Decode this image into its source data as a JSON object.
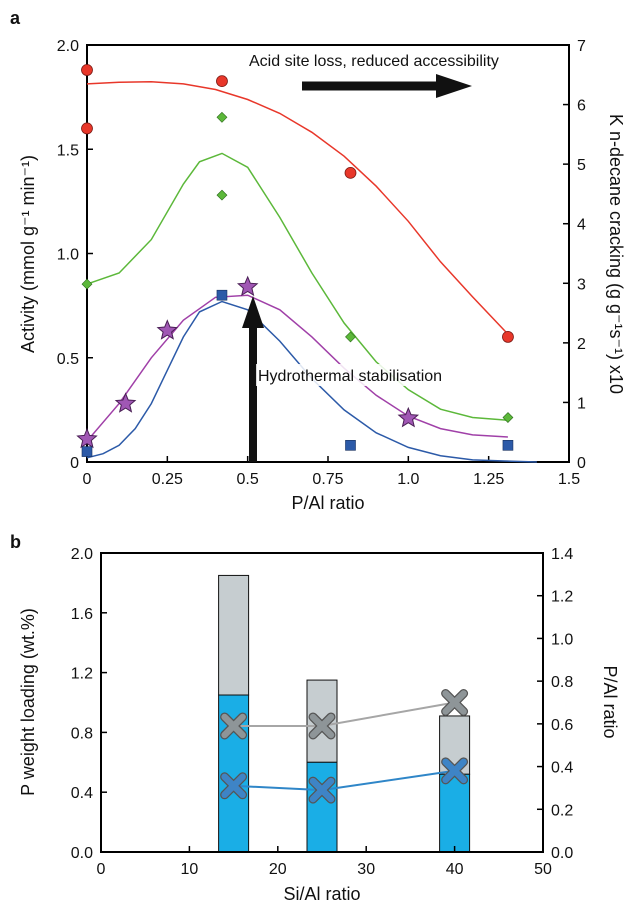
{
  "chart_data": [
    {
      "panel": "a",
      "type": "scatter",
      "xlabel": "P/Al ratio",
      "ylabel": "Activity (mmol g⁻¹ min⁻¹)",
      "y2label": "K n-decane cracking (g g⁻¹s⁻¹) x10",
      "xlim": [
        0,
        1.5
      ],
      "ylim": [
        0,
        2.0
      ],
      "y2lim": [
        0,
        7.5
      ],
      "xticks": [
        "0",
        "0.25",
        "0.5",
        "0.75",
        "1.0",
        "1.25",
        "1.5"
      ],
      "yticks": [
        "0",
        "0.5",
        "1.0",
        "1.5",
        "2.0"
      ],
      "y2ticks": [
        "0",
        "1",
        "2",
        "3",
        "4",
        "5",
        "6",
        "7"
      ],
      "grid": false,
      "annotations": {
        "top": "Acid site loss, reduced accessibility",
        "middle": "Hydrothermal stabilisation"
      },
      "colors": {
        "circle": "#e8372a",
        "diamond": "#5cb83a",
        "star": "#a057b4",
        "square": "#2c5aa8",
        "fit_red": "#e8372a",
        "fit_green": "#5cb83a",
        "fit_purple": "#a040a8",
        "fit_blue": "#2c5aa8"
      },
      "series": [
        {
          "marker": "circle",
          "axis": "right",
          "x": [
            0,
            0,
            0.42,
            0.82,
            1.31
          ],
          "y": [
            7.05,
            6.0,
            6.85,
            5.2,
            2.25
          ]
        },
        {
          "marker": "diamond",
          "axis": "right",
          "x": [
            0,
            0.42,
            0.42,
            0.82,
            1.31
          ],
          "y": [
            3.2,
            6.2,
            4.8,
            2.25,
            0.8
          ]
        },
        {
          "marker": "star",
          "axis": "left",
          "x": [
            0,
            0.12,
            0.25,
            0.5,
            1.0
          ],
          "y": [
            0.11,
            0.28,
            0.63,
            0.84,
            0.21
          ]
        },
        {
          "marker": "square",
          "axis": "left",
          "x": [
            0,
            0.42,
            0.82,
            1.31
          ],
          "y": [
            0.05,
            0.8,
            0.08,
            0.08
          ]
        }
      ],
      "fits": [
        {
          "color_key": "fit_red",
          "axis": "right",
          "x": [
            0,
            0.1,
            0.2,
            0.3,
            0.4,
            0.5,
            0.6,
            0.7,
            0.8,
            0.9,
            1.0,
            1.1,
            1.2,
            1.31
          ],
          "y": [
            6.8,
            6.83,
            6.84,
            6.8,
            6.7,
            6.52,
            6.27,
            5.93,
            5.5,
            4.96,
            4.33,
            3.6,
            2.97,
            2.3
          ]
        },
        {
          "color_key": "fit_green",
          "axis": "right",
          "x": [
            0,
            0.1,
            0.2,
            0.3,
            0.35,
            0.42,
            0.5,
            0.6,
            0.7,
            0.8,
            0.9,
            1.0,
            1.1,
            1.2,
            1.31
          ],
          "y": [
            3.2,
            3.4,
            4.0,
            5.0,
            5.4,
            5.55,
            5.3,
            4.4,
            3.4,
            2.5,
            1.8,
            1.3,
            0.95,
            0.8,
            0.75
          ]
        },
        {
          "color_key": "fit_purple",
          "axis": "left",
          "x": [
            0,
            0.1,
            0.2,
            0.3,
            0.4,
            0.5,
            0.6,
            0.7,
            0.8,
            0.9,
            1.0,
            1.1,
            1.2,
            1.31
          ],
          "y": [
            0.1,
            0.28,
            0.5,
            0.68,
            0.79,
            0.8,
            0.73,
            0.6,
            0.45,
            0.32,
            0.22,
            0.16,
            0.13,
            0.12
          ]
        },
        {
          "color_key": "fit_blue",
          "axis": "left",
          "x": [
            0,
            0.05,
            0.1,
            0.15,
            0.2,
            0.25,
            0.3,
            0.35,
            0.42,
            0.5,
            0.6,
            0.7,
            0.8,
            0.9,
            1.0,
            1.1,
            1.2,
            1.3,
            1.4
          ],
          "y": [
            0.02,
            0.04,
            0.08,
            0.16,
            0.28,
            0.44,
            0.6,
            0.72,
            0.77,
            0.73,
            0.58,
            0.4,
            0.25,
            0.14,
            0.07,
            0.03,
            0.01,
            0.005,
            0
          ]
        }
      ]
    },
    {
      "panel": "b",
      "type": "bar",
      "xlabel": "Si/Al ratio",
      "ylabel": "P weight loading (wt.%)",
      "y2label": "P/Al ratio",
      "xlim": [
        0,
        50
      ],
      "ylim": [
        0,
        2.0
      ],
      "y2lim": [
        0,
        1.4
      ],
      "xticks": [
        "0",
        "10",
        "20",
        "30",
        "40",
        "50"
      ],
      "yticks": [
        "0.0",
        "0.4",
        "0.8",
        "1.2",
        "1.6",
        "2.0"
      ],
      "y2ticks": [
        "0.0",
        "0.2",
        "0.4",
        "0.6",
        "0.8",
        "1.0",
        "1.2",
        "1.4"
      ],
      "grid": false,
      "colors": {
        "bar_blue": "#1aaee6",
        "bar_gray": "#c6cdd0",
        "line_gray": "#a6a6a6",
        "line_blue": "#2f86c8",
        "cross_gray": "#8e9598",
        "cross_blue": "#3e84c6"
      },
      "bars": [
        {
          "x": 15,
          "blue": 1.05,
          "total": 1.85
        },
        {
          "x": 25,
          "blue": 0.6,
          "total": 1.15
        },
        {
          "x": 40,
          "blue": 0.52,
          "total": 0.91
        }
      ],
      "series": [
        {
          "color_key": "line_gray",
          "marker_color_key": "cross_gray",
          "axis": "right",
          "x": [
            15,
            25,
            40
          ],
          "y": [
            0.59,
            0.59,
            0.7
          ]
        },
        {
          "color_key": "line_blue",
          "marker_color_key": "cross_blue",
          "axis": "right",
          "x": [
            15,
            25,
            40
          ],
          "y": [
            0.31,
            0.29,
            0.38
          ]
        }
      ]
    }
  ],
  "labels": {
    "panel_a": "a",
    "panel_b": "b"
  }
}
